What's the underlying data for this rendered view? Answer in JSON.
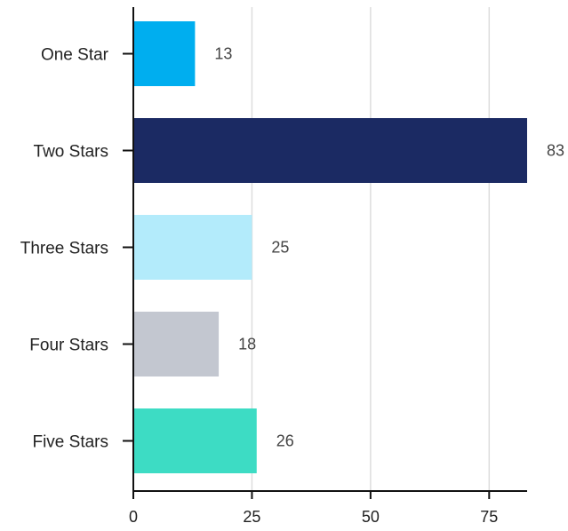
{
  "chart_data": {
    "type": "bar",
    "orientation": "horizontal",
    "categories": [
      "One Star",
      "Two Stars",
      "Three Stars",
      "Four Stars",
      "Five Stars"
    ],
    "values": [
      13,
      83,
      25,
      18,
      26
    ],
    "colors": [
      "#00aeef",
      "#1b2a63",
      "#b3ebfb",
      "#c3c7d0",
      "#3ddcc4"
    ],
    "x_ticks": [
      0,
      25,
      50,
      75
    ],
    "xlim": [
      0,
      83
    ],
    "grid": "vertical",
    "legend": "none",
    "title": "",
    "xlabel": "",
    "ylabel": ""
  }
}
